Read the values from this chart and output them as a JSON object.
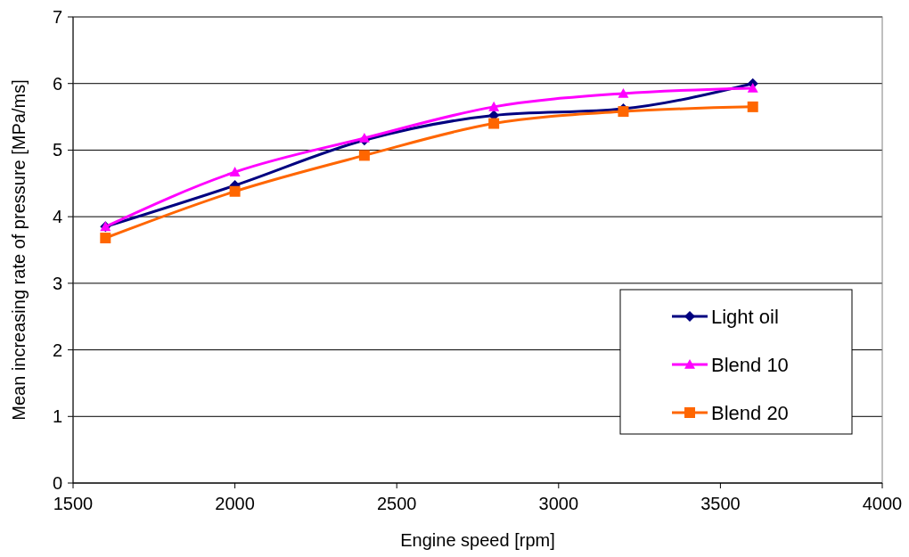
{
  "chart_data": {
    "type": "line",
    "xlabel": "Engine speed [rpm]",
    "ylabel": "Mean increasing rate of pressure [MPa/ms]",
    "x": [
      1600,
      2000,
      2400,
      2800,
      3200,
      3600
    ],
    "series": [
      {
        "name": "Light oil",
        "color": "#000080",
        "marker": "diamond",
        "values": [
          3.85,
          4.47,
          5.15,
          5.52,
          5.62,
          6.0
        ]
      },
      {
        "name": "Blend 10",
        "color": "#ff00ff",
        "marker": "triangle",
        "values": [
          3.85,
          4.67,
          5.18,
          5.65,
          5.85,
          5.93
        ]
      },
      {
        "name": "Blend 20",
        "color": "#ff6600",
        "marker": "square",
        "values": [
          3.68,
          4.38,
          4.92,
          5.4,
          5.58,
          5.65
        ]
      }
    ],
    "xlim": [
      1500,
      4000
    ],
    "xticks": [
      1500,
      2000,
      2500,
      3000,
      3500,
      4000
    ],
    "ylim": [
      0,
      7
    ],
    "yticks": [
      0,
      1,
      2,
      3,
      4,
      5,
      6,
      7
    ],
    "grid": "y",
    "legend": "bottom right",
    "line_style": "solid"
  }
}
